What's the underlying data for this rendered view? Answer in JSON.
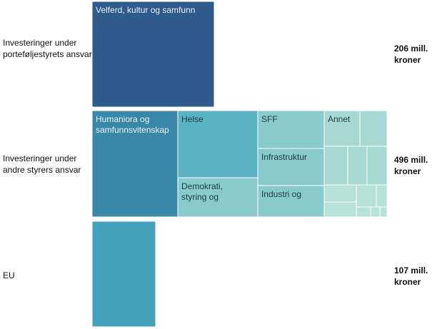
{
  "chart_data": {
    "type": "treemap",
    "unit": "mill. kroner",
    "colors": {
      "dark_blue": "#2e5b8c",
      "mid_blue": "#3a88a8",
      "teal": "#45a1b9",
      "light_teal": "#5ab2c2",
      "pale_teal": "#89cacc",
      "paler_teal": "#9ed7d2",
      "faint_teal": "#b6e2d8"
    },
    "rows": [
      {
        "label": "Investeringer under porteføljestyrets ansvar",
        "total": 206,
        "total_text": "206 mill. kroner",
        "items": [
          {
            "label": "Velferd, kultur og samfunn",
            "color": "#2e5b8c"
          }
        ]
      },
      {
        "label": "Investeringer under andre styrers ansvar",
        "total": 496,
        "total_text": "496 mill. kroner",
        "items": [
          {
            "label": "Humaniora og samfunnsvitenskap",
            "color": "#3a88a8"
          },
          {
            "label": "Helse",
            "color": "#5ab2c2"
          },
          {
            "label": "Demokrati, styring og",
            "color": "#89cacc"
          },
          {
            "label": "SFF",
            "color": "#89cacc"
          },
          {
            "label": "Infrastruktur",
            "color": "#89cacc"
          },
          {
            "label": "Industri og",
            "color": "#89cacc"
          },
          {
            "label": "Annet",
            "color": "#a6d9d4"
          },
          {
            "label": "",
            "color": "#a6d9d4"
          },
          {
            "label": "",
            "color": "#a6d9d4"
          },
          {
            "label": "",
            "color": "#a6d9d4"
          },
          {
            "label": "",
            "color": "#a6d9d4"
          },
          {
            "label": "",
            "color": "#b6e2d8"
          },
          {
            "label": "",
            "color": "#b6e2d8"
          },
          {
            "label": "",
            "color": "#b6e2d8"
          },
          {
            "label": "",
            "color": "#b6e2d8"
          },
          {
            "label": "",
            "color": "#b6e2d8"
          },
          {
            "label": "",
            "color": "#b6e2d8"
          },
          {
            "label": "",
            "color": "#b6e2d8"
          }
        ]
      },
      {
        "label": "EU",
        "total": 107,
        "total_text": "107 mill. kroner",
        "items": [
          {
            "label": "",
            "color": "#45a1b9"
          }
        ]
      }
    ]
  }
}
